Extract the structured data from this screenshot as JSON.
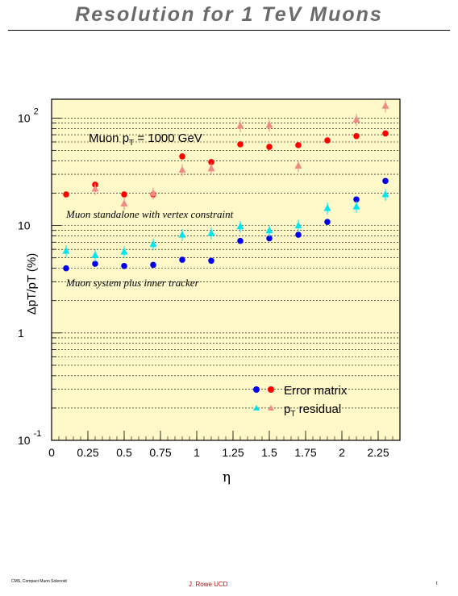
{
  "page": {
    "title": "Resolution for 1 TeV Muons",
    "footer_left": "CMS, Compact Muon Solenoid",
    "footer_center": "J. Rowe  UCD",
    "footer_right": "t"
  },
  "chart_data": {
    "type": "scatter",
    "title": "Resolution for 1 TeV Muons",
    "xlabel": "η",
    "ylabel": "ΔpT/pT (%)",
    "xlim": [
      0,
      2.4
    ],
    "ylim": [
      0.1,
      150
    ],
    "yscale": "log",
    "x_ticks": [
      "0",
      "0.25",
      "0.5",
      "0.75",
      "1",
      "1.25",
      "1.5",
      "1.75",
      "2",
      "2.25"
    ],
    "y_tick_labels": [
      {
        "value": 100,
        "base": "10",
        "exp": "2"
      },
      {
        "value": 10,
        "base": "10",
        "exp": ""
      },
      {
        "value": 1,
        "base": "1",
        "exp": ""
      },
      {
        "value": 0.1,
        "base": "10",
        "exp": "-1"
      }
    ],
    "grid": "horizontal",
    "background": "#fff8c8",
    "annotations": {
      "momentum_main": "Muon p",
      "momentum_sub": "T",
      "momentum_rest": " = 1000 GeV",
      "standalone": "Muon standalone with vertex constraint",
      "combined": "Muon system plus inner tracker"
    },
    "legend": {
      "position": "bottom-right",
      "error_matrix": "Error matrix",
      "residual_main": "p",
      "residual_sub": "T",
      "residual_rest": " residual"
    },
    "colors": {
      "standalone_error": "#ff0000",
      "standalone_residual": "#f08a84",
      "combined_error": "#0000ee",
      "combined_residual": "#00e5f0"
    },
    "series": [
      {
        "group": "standalone",
        "kind": "error_matrix",
        "x": [
          0.1,
          0.3,
          0.5,
          0.7,
          0.9,
          1.1,
          1.3,
          1.5,
          1.7,
          1.9,
          2.1,
          2.3
        ],
        "y": [
          19.5,
          24,
          19.5,
          19.5,
          44,
          39,
          57,
          54,
          56,
          62,
          68,
          72
        ]
      },
      {
        "group": "standalone",
        "kind": "residual",
        "x": [
          0.3,
          0.5,
          0.7,
          0.9,
          1.1,
          1.3,
          1.5,
          1.7,
          2.1,
          2.3
        ],
        "y": [
          22,
          16,
          20,
          33,
          34,
          85,
          86,
          36,
          97,
          130
        ]
      },
      {
        "group": "combined",
        "kind": "error_matrix",
        "x": [
          0.1,
          0.3,
          0.5,
          0.7,
          0.9,
          1.1,
          1.3,
          1.5,
          1.7,
          1.9,
          2.1,
          2.3
        ],
        "y": [
          4.0,
          4.4,
          4.2,
          4.3,
          4.8,
          4.7,
          7.2,
          7.6,
          8.2,
          10.8,
          17.5,
          26
        ]
      },
      {
        "group": "combined",
        "kind": "residual",
        "x": [
          0.1,
          0.3,
          0.5,
          0.7,
          0.9,
          1.1,
          1.3,
          1.5,
          1.7,
          1.9,
          2.1,
          2.3
        ],
        "y": [
          5.8,
          5.3,
          5.7,
          6.7,
          8.2,
          8.5,
          9.8,
          9.0,
          10.0,
          14.5,
          15.0,
          19.5
        ]
      }
    ]
  }
}
